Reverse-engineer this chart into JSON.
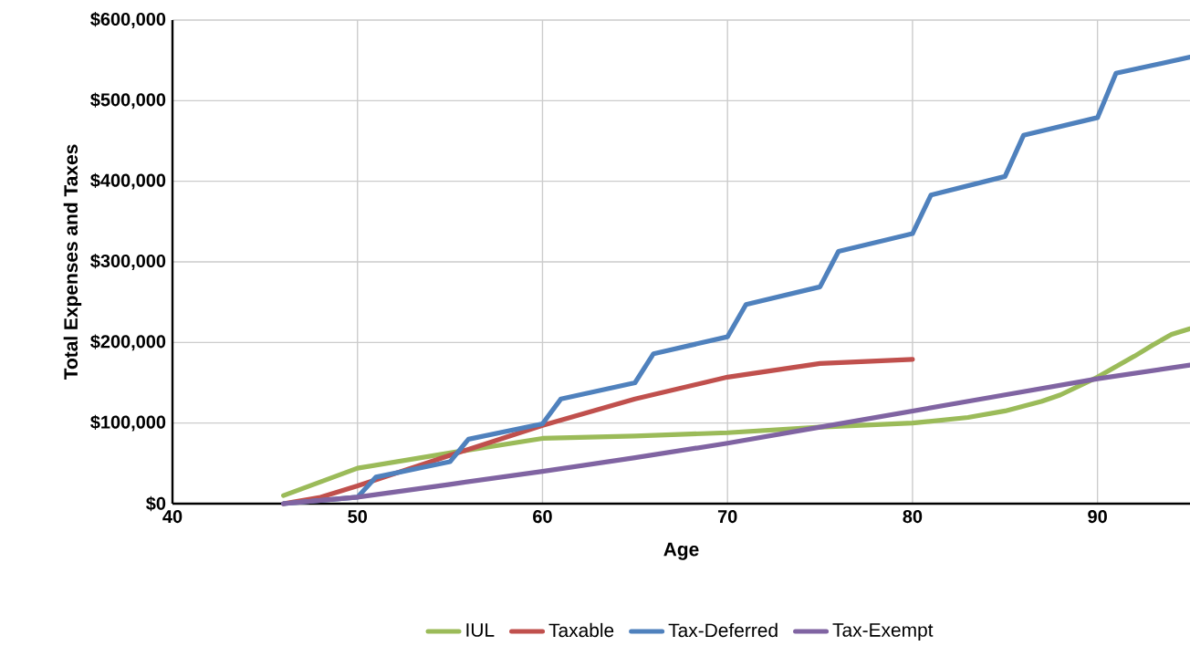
{
  "chart_data": {
    "type": "line",
    "xlabel": "Age",
    "ylabel": "Total Expenses and Taxes",
    "xlim": [
      40,
      95
    ],
    "xticks": [
      40,
      50,
      60,
      70,
      80,
      90
    ],
    "ylim": [
      0,
      600000
    ],
    "yticks": [
      {
        "value": 0,
        "label": "$0"
      },
      {
        "value": 100000,
        "label": "$100,000"
      },
      {
        "value": 200000,
        "label": "$200,000"
      },
      {
        "value": 300000,
        "label": "$300,000"
      },
      {
        "value": 400000,
        "label": "$400,000"
      },
      {
        "value": 500000,
        "label": "$500,000"
      },
      {
        "value": 600000,
        "label": "$600,000"
      }
    ],
    "grid": true,
    "legend": "bottom",
    "marker": "none",
    "line_style": "solid",
    "series": [
      {
        "name": "IUL",
        "color": "#9bbb59",
        "x": [
          46,
          50,
          55,
          60,
          65,
          70,
          75,
          80,
          83,
          85,
          87,
          88,
          90,
          92,
          93,
          94,
          95
        ],
        "values": [
          10000,
          44000,
          63000,
          81000,
          84000,
          88000,
          95000,
          100000,
          107000,
          115000,
          127000,
          135000,
          157000,
          183000,
          197000,
          210000,
          217000
        ]
      },
      {
        "name": "Taxable",
        "color": "#c0504d",
        "x": [
          46,
          48,
          50,
          55,
          60,
          65,
          70,
          75,
          80
        ],
        "values": [
          0,
          8000,
          22000,
          60000,
          97000,
          130000,
          157000,
          174000,
          179000
        ]
      },
      {
        "name": "Tax-Deferred",
        "color": "#4f81bd",
        "x": [
          46,
          50,
          51,
          55,
          56,
          60,
          61,
          65,
          66,
          70,
          71,
          75,
          76,
          80,
          81,
          85,
          86,
          90,
          91,
          95
        ],
        "values": [
          0,
          8000,
          33000,
          52000,
          80000,
          99000,
          130000,
          150000,
          186000,
          207000,
          247000,
          269000,
          313000,
          335000,
          383000,
          406000,
          457000,
          479000,
          534000,
          554000
        ]
      },
      {
        "name": "Tax-Exempt",
        "color": "#8064a2",
        "x": [
          46,
          50,
          55,
          60,
          65,
          70,
          75,
          80,
          85,
          90,
          95
        ],
        "values": [
          0,
          8000,
          24000,
          40000,
          57000,
          75000,
          95000,
          115000,
          135000,
          155000,
          172000
        ]
      }
    ]
  }
}
